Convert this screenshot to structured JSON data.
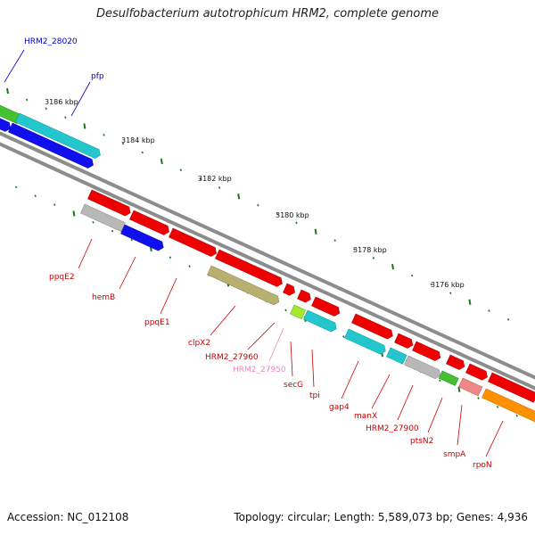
{
  "title": "Desulfobacterium autotrophicum HRM2, complete genome",
  "accession": "Accession: NC_012108",
  "summary": "Topology: circular; Length: 5,589,073 bp; Genes: 4,936",
  "colors": {
    "red": "#ee0000",
    "cyan": "#22c6cc",
    "blue": "#1010ee",
    "gray": "#b8b8b8",
    "green": "#44c030",
    "olive": "#b8b070",
    "lime": "#a4e830",
    "pink": "#ee8888",
    "orange": "#ff9000",
    "backbone": "#8c8c8c",
    "tick": "#1a7a1a",
    "label_blue": "#0000cc",
    "label_red": "#cc0000",
    "label_pink": "#ee88bb"
  },
  "kbp_ticks": [
    "3186 kbp",
    "3184 kbp",
    "3182 kbp",
    "3180 kbp",
    "3178 kbp",
    "3176 kbp"
  ],
  "gene_labels": [
    {
      "text": "HRM2_28020",
      "color": "label_blue"
    },
    {
      "text": "pfp",
      "color": "label_blue"
    },
    {
      "text": "ppqE2",
      "color": "label_red"
    },
    {
      "text": "hemB",
      "color": "label_red"
    },
    {
      "text": "ppqE1",
      "color": "label_red"
    },
    {
      "text": "clpX2",
      "color": "label_red"
    },
    {
      "text": "HRM2_27960",
      "color": "label_red"
    },
    {
      "text": "HRM2_27950",
      "color": "label_pink"
    },
    {
      "text": "secG",
      "color": "label_red"
    },
    {
      "text": "tpi",
      "color": "label_red"
    },
    {
      "text": "gap4",
      "color": "label_red"
    },
    {
      "text": "manX",
      "color": "label_red"
    },
    {
      "text": "HRM2_27900",
      "color": "label_red"
    },
    {
      "text": "ptsN2",
      "color": "label_red"
    },
    {
      "text": "smpA",
      "color": "label_red"
    },
    {
      "text": "rpoN",
      "color": "label_red"
    }
  ]
}
